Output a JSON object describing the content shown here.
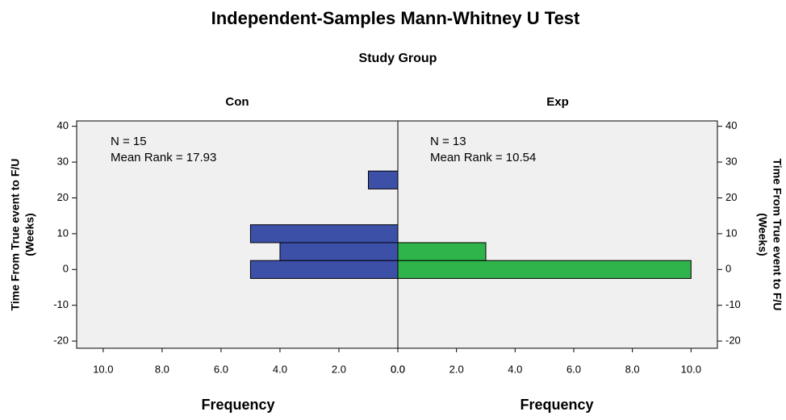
{
  "chart_data": {
    "type": "histogram",
    "title": "Independent-Samples Mann-Whitney U Test",
    "subtitle": "Study Group",
    "ylabel": [
      "Time From True event to F/U",
      "(Weeks)"
    ],
    "xlabel": "Frequency",
    "bins": [
      -2.5,
      2.5,
      7.5,
      12.5,
      17.5,
      22.5,
      27.5
    ],
    "ylim": [
      -22,
      41.5
    ],
    "yticks": [
      -20,
      -10,
      0,
      10,
      20,
      30,
      40
    ],
    "xlim": [
      0,
      10.9
    ],
    "xticks": [
      {
        "value": 0,
        "label": "0.0"
      },
      {
        "value": 2,
        "label": "2.0"
      },
      {
        "value": 4,
        "label": "4.0"
      },
      {
        "value": 6,
        "label": "6.0"
      },
      {
        "value": 8,
        "label": "8.0"
      },
      {
        "value": 10,
        "label": "10.0"
      }
    ],
    "series": [
      {
        "name": "Con",
        "color": "#3c50a8",
        "values": [
          5,
          4,
          5,
          0,
          0,
          1
        ],
        "annotations": [
          "N = 15",
          "Mean Rank = 17.93"
        ]
      },
      {
        "name": "Exp",
        "color": "#2fb34b",
        "values": [
          10,
          3,
          0,
          0,
          0,
          0
        ],
        "annotations": [
          "N = 13",
          "Mean Rank = 10.54"
        ]
      }
    ]
  }
}
